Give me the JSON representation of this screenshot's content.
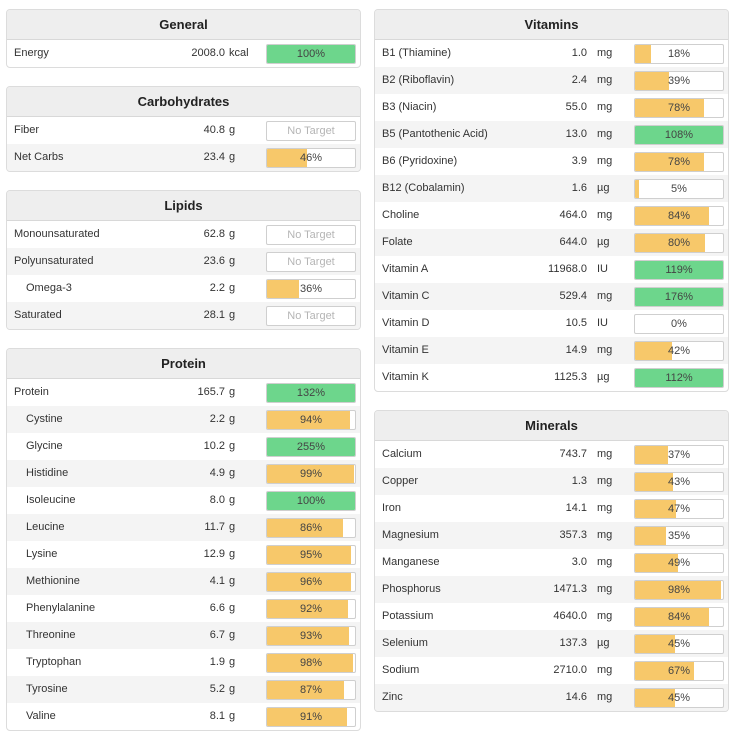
{
  "colors": {
    "full": "#6dd68c",
    "partial": "#f7c86a",
    "border": "#cfcfcf",
    "placeholder": "#b5b5b5"
  },
  "panels": [
    {
      "id": "general",
      "title": "General",
      "col": "left",
      "rows": [
        {
          "label": "Energy",
          "amount": "2008.0",
          "unit": "kcal",
          "pct_label": "100%",
          "pct": 100
        }
      ]
    },
    {
      "id": "carbohydrates",
      "title": "Carbohydrates",
      "col": "left",
      "rows": [
        {
          "label": "Fiber",
          "amount": "40.8",
          "unit": "g",
          "pct_label": "No Target",
          "pct": null
        },
        {
          "label": "Net Carbs",
          "amount": "23.4",
          "unit": "g",
          "pct_label": "46%",
          "pct": 46
        }
      ]
    },
    {
      "id": "lipids",
      "title": "Lipids",
      "col": "left",
      "rows": [
        {
          "label": "Monounsaturated",
          "amount": "62.8",
          "unit": "g",
          "pct_label": "No Target",
          "pct": null
        },
        {
          "label": "Polyunsaturated",
          "amount": "23.6",
          "unit": "g",
          "pct_label": "No Target",
          "pct": null
        },
        {
          "label": "Omega-3",
          "amount": "2.2",
          "unit": "g",
          "pct_label": "36%",
          "pct": 36,
          "sub": true
        },
        {
          "label": "Saturated",
          "amount": "28.1",
          "unit": "g",
          "pct_label": "No Target",
          "pct": null
        }
      ]
    },
    {
      "id": "protein",
      "title": "Protein",
      "col": "left",
      "rows": [
        {
          "label": "Protein",
          "amount": "165.7",
          "unit": "g",
          "pct_label": "132%",
          "pct": 132
        },
        {
          "label": "Cystine",
          "amount": "2.2",
          "unit": "g",
          "pct_label": "94%",
          "pct": 94,
          "sub": true
        },
        {
          "label": "Glycine",
          "amount": "10.2",
          "unit": "g",
          "pct_label": "255%",
          "pct": 255,
          "sub": true
        },
        {
          "label": "Histidine",
          "amount": "4.9",
          "unit": "g",
          "pct_label": "99%",
          "pct": 99,
          "sub": true
        },
        {
          "label": "Isoleucine",
          "amount": "8.0",
          "unit": "g",
          "pct_label": "100%",
          "pct": 100,
          "sub": true
        },
        {
          "label": "Leucine",
          "amount": "11.7",
          "unit": "g",
          "pct_label": "86%",
          "pct": 86,
          "sub": true
        },
        {
          "label": "Lysine",
          "amount": "12.9",
          "unit": "g",
          "pct_label": "95%",
          "pct": 95,
          "sub": true
        },
        {
          "label": "Methionine",
          "amount": "4.1",
          "unit": "g",
          "pct_label": "96%",
          "pct": 96,
          "sub": true
        },
        {
          "label": "Phenylalanine",
          "amount": "6.6",
          "unit": "g",
          "pct_label": "92%",
          "pct": 92,
          "sub": true
        },
        {
          "label": "Threonine",
          "amount": "6.7",
          "unit": "g",
          "pct_label": "93%",
          "pct": 93,
          "sub": true
        },
        {
          "label": "Tryptophan",
          "amount": "1.9",
          "unit": "g",
          "pct_label": "98%",
          "pct": 98,
          "sub": true
        },
        {
          "label": "Tyrosine",
          "amount": "5.2",
          "unit": "g",
          "pct_label": "87%",
          "pct": 87,
          "sub": true
        },
        {
          "label": "Valine",
          "amount": "8.1",
          "unit": "g",
          "pct_label": "91%",
          "pct": 91,
          "sub": true
        }
      ]
    },
    {
      "id": "vitamins",
      "title": "Vitamins",
      "col": "right",
      "rows": [
        {
          "label": "B1 (Thiamine)",
          "amount": "1.0",
          "unit": "mg",
          "pct_label": "18%",
          "pct": 18
        },
        {
          "label": "B2 (Riboflavin)",
          "amount": "2.4",
          "unit": "mg",
          "pct_label": "39%",
          "pct": 39
        },
        {
          "label": "B3 (Niacin)",
          "amount": "55.0",
          "unit": "mg",
          "pct_label": "78%",
          "pct": 78
        },
        {
          "label": "B5 (Pantothenic Acid)",
          "amount": "13.0",
          "unit": "mg",
          "pct_label": "108%",
          "pct": 108
        },
        {
          "label": "B6 (Pyridoxine)",
          "amount": "3.9",
          "unit": "mg",
          "pct_label": "78%",
          "pct": 78
        },
        {
          "label": "B12 (Cobalamin)",
          "amount": "1.6",
          "unit": "µg",
          "pct_label": "5%",
          "pct": 5
        },
        {
          "label": "Choline",
          "amount": "464.0",
          "unit": "mg",
          "pct_label": "84%",
          "pct": 84
        },
        {
          "label": "Folate",
          "amount": "644.0",
          "unit": "µg",
          "pct_label": "80%",
          "pct": 80
        },
        {
          "label": "Vitamin A",
          "amount": "11968.0",
          "unit": "IU",
          "pct_label": "119%",
          "pct": 119
        },
        {
          "label": "Vitamin C",
          "amount": "529.4",
          "unit": "mg",
          "pct_label": "176%",
          "pct": 176
        },
        {
          "label": "Vitamin D",
          "amount": "10.5",
          "unit": "IU",
          "pct_label": "0%",
          "pct": 0
        },
        {
          "label": "Vitamin E",
          "amount": "14.9",
          "unit": "mg",
          "pct_label": "42%",
          "pct": 42
        },
        {
          "label": "Vitamin K",
          "amount": "1125.3",
          "unit": "µg",
          "pct_label": "112%",
          "pct": 112
        }
      ]
    },
    {
      "id": "minerals",
      "title": "Minerals",
      "col": "right",
      "rows": [
        {
          "label": "Calcium",
          "amount": "743.7",
          "unit": "mg",
          "pct_label": "37%",
          "pct": 37
        },
        {
          "label": "Copper",
          "amount": "1.3",
          "unit": "mg",
          "pct_label": "43%",
          "pct": 43
        },
        {
          "label": "Iron",
          "amount": "14.1",
          "unit": "mg",
          "pct_label": "47%",
          "pct": 47
        },
        {
          "label": "Magnesium",
          "amount": "357.3",
          "unit": "mg",
          "pct_label": "35%",
          "pct": 35
        },
        {
          "label": "Manganese",
          "amount": "3.0",
          "unit": "mg",
          "pct_label": "49%",
          "pct": 49
        },
        {
          "label": "Phosphorus",
          "amount": "1471.3",
          "unit": "mg",
          "pct_label": "98%",
          "pct": 98
        },
        {
          "label": "Potassium",
          "amount": "4640.0",
          "unit": "mg",
          "pct_label": "84%",
          "pct": 84
        },
        {
          "label": "Selenium",
          "amount": "137.3",
          "unit": "µg",
          "pct_label": "45%",
          "pct": 45
        },
        {
          "label": "Sodium",
          "amount": "2710.0",
          "unit": "mg",
          "pct_label": "67%",
          "pct": 67
        },
        {
          "label": "Zinc",
          "amount": "14.6",
          "unit": "mg",
          "pct_label": "45%",
          "pct": 45
        }
      ]
    }
  ]
}
